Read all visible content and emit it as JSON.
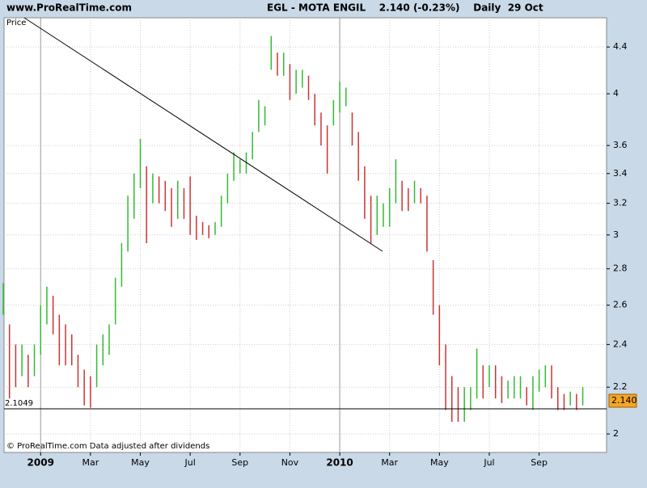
{
  "header": {
    "site": "www.ProRealTime.com",
    "title": "EGL - MOTA ENGIL    2.140 (-0.23%)    Daily  29 Oct"
  },
  "footer": "© ProRealTime.com  Data adjusted after dividends",
  "chart_data": {
    "type": "range",
    "categories": [
      null,
      null,
      null,
      null,
      null,
      null,
      "2009",
      null,
      null,
      null,
      null,
      null,
      null,
      null,
      "Mar",
      null,
      null,
      null,
      null,
      null,
      null,
      null,
      "May",
      null,
      null,
      null,
      null,
      null,
      null,
      null,
      "Jul",
      null,
      null,
      null,
      null,
      null,
      null,
      null,
      "Sep",
      null,
      null,
      null,
      null,
      null,
      null,
      null,
      "Nov",
      null,
      null,
      null,
      null,
      null,
      null,
      null,
      "2010",
      null,
      null,
      null,
      null,
      null,
      null,
      null,
      "Mar",
      null,
      null,
      null,
      null,
      null,
      null,
      null,
      "May",
      null,
      null,
      null,
      null,
      null,
      null,
      null,
      "Jul",
      null,
      null,
      null,
      null,
      null,
      null,
      null,
      "Sep",
      null,
      null,
      null,
      null,
      null,
      null,
      null
    ],
    "series": [
      {
        "name": "Price",
        "up_color": "#33bb33",
        "down_color": "#cc3333",
        "low": [
          2.55,
          2.15,
          2.2,
          2.25,
          2.2,
          2.25,
          2.35,
          2.5,
          2.45,
          2.3,
          2.3,
          2.3,
          2.2,
          2.12,
          2.11,
          2.2,
          2.3,
          2.35,
          2.5,
          2.7,
          2.9,
          3.1,
          3.3,
          2.95,
          3.2,
          3.2,
          3.15,
          3.05,
          3.1,
          3.1,
          3.0,
          2.97,
          3.0,
          2.98,
          3.0,
          3.05,
          3.2,
          3.35,
          3.4,
          3.4,
          3.5,
          3.7,
          3.75,
          4.2,
          4.15,
          4.15,
          3.95,
          4.0,
          4.05,
          3.95,
          3.75,
          3.6,
          3.4,
          3.75,
          3.85,
          3.9,
          3.6,
          3.35,
          3.1,
          2.95,
          3.0,
          3.05,
          3.05,
          3.2,
          3.15,
          3.15,
          3.2,
          3.2,
          2.9,
          2.55,
          2.3,
          2.1,
          2.05,
          2.05,
          2.05,
          2.1,
          2.15,
          2.15,
          2.2,
          2.15,
          2.13,
          2.15,
          2.15,
          2.15,
          2.12,
          2.1,
          2.18,
          2.2,
          2.15,
          2.1,
          2.1,
          2.12,
          2.1,
          2.12
        ],
        "high": [
          2.72,
          2.5,
          2.4,
          2.4,
          2.35,
          2.4,
          2.6,
          2.7,
          2.65,
          2.55,
          2.5,
          2.45,
          2.35,
          2.28,
          2.25,
          2.4,
          2.45,
          2.5,
          2.75,
          2.95,
          3.25,
          3.4,
          3.65,
          3.45,
          3.4,
          3.38,
          3.35,
          3.3,
          3.35,
          3.3,
          3.38,
          3.12,
          3.08,
          3.06,
          3.08,
          3.25,
          3.4,
          3.55,
          3.5,
          3.55,
          3.7,
          3.95,
          3.9,
          4.5,
          4.35,
          4.35,
          4.25,
          4.2,
          4.2,
          4.15,
          4.0,
          3.85,
          3.75,
          3.95,
          4.1,
          4.05,
          3.85,
          3.7,
          3.45,
          3.25,
          3.25,
          3.2,
          3.3,
          3.5,
          3.35,
          3.3,
          3.35,
          3.3,
          3.25,
          2.85,
          2.6,
          2.4,
          2.25,
          2.2,
          2.2,
          2.2,
          2.38,
          2.3,
          2.3,
          2.3,
          2.25,
          2.23,
          2.25,
          2.25,
          2.2,
          2.25,
          2.28,
          2.3,
          2.3,
          2.2,
          2.17,
          2.18,
          2.17,
          2.2
        ]
      }
    ],
    "ylim": [
      1.926,
      4.67
    ],
    "log_scale": true,
    "yticks": [
      2,
      2.2,
      2.4,
      2.6,
      2.8,
      3,
      3.2,
      3.4,
      3.6,
      4,
      4.4
    ],
    "grid": true,
    "reference_line": 2.1049,
    "last_value": {
      "value": 2.14,
      "label": "2.140"
    }
  }
}
